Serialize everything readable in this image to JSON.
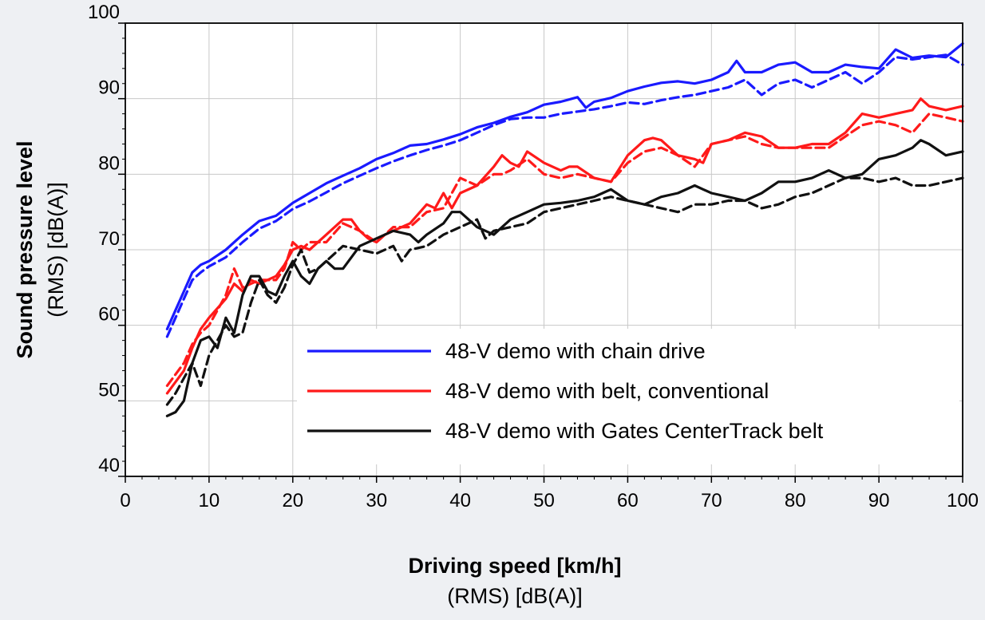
{
  "chart_data": {
    "type": "line",
    "xlabel": "Driving speed [km/h]",
    "xlabel_sub": "(RMS) [dB(A)]",
    "ylabel_line1": "Sound pressure level",
    "ylabel_line2": "(RMS) [dB(A)]",
    "xlim": [
      0,
      100
    ],
    "ylim": [
      40,
      100
    ],
    "xticks": [
      "0",
      "10",
      "20",
      "30",
      "40",
      "50",
      "60",
      "70",
      "80",
      "90",
      "100"
    ],
    "yticks": [
      "40",
      "50",
      "60",
      "70",
      "80",
      "90",
      "100"
    ],
    "grid": true,
    "legend_position": "lower-right",
    "legend": [
      {
        "label": "48-V demo with chain drive",
        "color": "#1a1aff"
      },
      {
        "label": "48-V demo with belt, conventional",
        "color": "#ff1a1a"
      },
      {
        "label": "48-V demo with Gates CenterTrack belt",
        "color": "#111111"
      }
    ],
    "series": [
      {
        "name": "48-V demo with chain drive",
        "style": "solid",
        "color": "#1a1aff",
        "x": [
          5,
          6,
          7,
          8,
          9,
          10,
          12,
          14,
          16,
          18,
          20,
          22,
          24,
          26,
          28,
          30,
          32,
          34,
          36,
          38,
          40,
          42,
          44,
          46,
          48,
          50,
          52,
          54,
          55,
          56,
          58,
          60,
          62,
          64,
          66,
          68,
          70,
          72,
          73,
          74,
          76,
          78,
          80,
          82,
          84,
          86,
          88,
          90,
          92,
          94,
          96,
          98,
          100
        ],
        "y": [
          59.5,
          62,
          64.5,
          67,
          68,
          68.5,
          70,
          72,
          73.8,
          74.5,
          76.2,
          77.5,
          78.8,
          79.8,
          80.8,
          82,
          82.8,
          83.8,
          84,
          84.6,
          85.3,
          86.2,
          86.8,
          87.6,
          88.2,
          89.2,
          89.6,
          90.2,
          88.8,
          89.6,
          90.1,
          91,
          91.6,
          92.1,
          92.3,
          92,
          92.5,
          93.5,
          95,
          93.5,
          93.5,
          94.5,
          94.8,
          93.5,
          93.5,
          94.5,
          94.2,
          94,
          96.5,
          95.4,
          95.7,
          95.5,
          97.3
        ]
      },
      {
        "name": "48-V demo with chain drive (dashed)",
        "style": "dashed",
        "color": "#1a1aff",
        "x": [
          5,
          6,
          7,
          8,
          9,
          10,
          12,
          14,
          16,
          18,
          20,
          22,
          24,
          26,
          28,
          30,
          32,
          34,
          36,
          38,
          40,
          42,
          44,
          46,
          48,
          50,
          52,
          54,
          56,
          58,
          60,
          62,
          64,
          66,
          68,
          70,
          72,
          74,
          76,
          78,
          80,
          82,
          84,
          86,
          88,
          90,
          92,
          94,
          96,
          98,
          100
        ],
        "y": [
          58.5,
          61,
          63.5,
          66,
          67,
          67.8,
          69,
          71,
          72.8,
          73.8,
          75.4,
          76.4,
          77.6,
          78.8,
          79.8,
          80.8,
          81.7,
          82.5,
          83.2,
          83.8,
          84.5,
          85.5,
          86.5,
          87.3,
          87.5,
          87.5,
          88,
          88.3,
          88.6,
          89,
          89.5,
          89.3,
          89.8,
          90.2,
          90.5,
          91,
          91.5,
          92.5,
          90.5,
          92,
          92.5,
          91.5,
          92.5,
          93.5,
          92,
          93.5,
          95.5,
          95.2,
          95.5,
          95.8,
          94.5
        ]
      },
      {
        "name": "48-V demo with belt, conventional",
        "style": "solid",
        "color": "#ff1a1a",
        "x": [
          5,
          6,
          7,
          8,
          9,
          10,
          12,
          13,
          14,
          15,
          16,
          18,
          19,
          20,
          21,
          22,
          24,
          26,
          27,
          28,
          29,
          30,
          31,
          32,
          34,
          36,
          37,
          38,
          39,
          40,
          42,
          44,
          45,
          46,
          47,
          48,
          50,
          52,
          53,
          54,
          56,
          58,
          60,
          62,
          63,
          64,
          66,
          68,
          69,
          70,
          72,
          74,
          76,
          78,
          80,
          82,
          84,
          86,
          88,
          90,
          92,
          94,
          95,
          96,
          98,
          100
        ],
        "y": [
          51,
          52.5,
          54,
          57,
          59.5,
          61,
          63.5,
          65.5,
          64.5,
          66,
          65.5,
          66.5,
          68,
          70,
          70.5,
          70,
          72,
          74,
          74,
          72.5,
          71.5,
          71,
          72,
          72.5,
          73.5,
          76,
          75.5,
          77.5,
          75.5,
          77.5,
          78.5,
          81,
          82.5,
          81.5,
          81,
          83,
          81.5,
          80.5,
          81,
          81,
          79.5,
          79,
          82.5,
          84.5,
          84.8,
          84.5,
          82.5,
          82,
          81.5,
          84,
          84.5,
          85.5,
          85,
          83.5,
          83.5,
          84,
          84,
          85.5,
          88,
          87.5,
          88,
          88.5,
          90,
          89,
          88.5,
          89
        ]
      },
      {
        "name": "48-V demo with belt, conventional (dashed)",
        "style": "dashed",
        "color": "#ff1a1a",
        "x": [
          5,
          6,
          7,
          8,
          9,
          10,
          12,
          13,
          14,
          15,
          16,
          18,
          19,
          20,
          21,
          22,
          24,
          26,
          28,
          30,
          32,
          34,
          36,
          38,
          40,
          42,
          44,
          45,
          46,
          48,
          50,
          52,
          54,
          56,
          58,
          60,
          62,
          64,
          66,
          68,
          70,
          72,
          74,
          76,
          78,
          80,
          82,
          84,
          86,
          88,
          90,
          92,
          94,
          96,
          98,
          100
        ],
        "y": [
          52,
          53.5,
          55,
          57.5,
          59,
          60,
          64,
          67.5,
          65,
          65.5,
          66,
          66,
          67.5,
          71,
          70,
          71,
          71,
          73.5,
          72.5,
          71,
          73,
          73,
          75,
          75.5,
          79.5,
          78.5,
          80,
          80,
          80.5,
          82,
          80,
          79.5,
          80,
          79.5,
          79,
          81.5,
          83,
          83.5,
          82.5,
          81,
          84,
          84.5,
          85,
          84,
          83.5,
          83.5,
          83.5,
          83.5,
          85,
          86.5,
          87,
          86.5,
          85.5,
          88,
          87.5,
          87
        ]
      },
      {
        "name": "48-V demo with Gates CenterTrack belt",
        "style": "solid",
        "color": "#111111",
        "x": [
          5,
          6,
          7,
          8,
          9,
          10,
          11,
          12,
          13,
          14,
          15,
          16,
          17,
          18,
          19,
          20,
          21,
          22,
          23,
          24,
          25,
          26,
          28,
          30,
          32,
          34,
          35,
          36,
          38,
          39,
          40,
          42,
          43,
          44,
          45,
          46,
          48,
          50,
          52,
          54,
          56,
          57,
          58,
          60,
          62,
          64,
          66,
          68,
          69,
          70,
          72,
          74,
          76,
          78,
          80,
          82,
          84,
          86,
          88,
          90,
          92,
          94,
          95,
          96,
          98,
          100
        ],
        "y": [
          48,
          48.5,
          50,
          55,
          58,
          58.5,
          57,
          61,
          59,
          64,
          66.5,
          66.5,
          64.5,
          64,
          66.5,
          68.5,
          66.5,
          65.5,
          67.5,
          68.5,
          67.5,
          67.5,
          70.5,
          71.5,
          72.5,
          72,
          71,
          72,
          73.5,
          75,
          75,
          73,
          72.5,
          72,
          73,
          74,
          75,
          76,
          76.2,
          76.5,
          77,
          77.5,
          78,
          76.5,
          76,
          77,
          77.5,
          78.5,
          78,
          77.5,
          77,
          76.5,
          77.5,
          79,
          79,
          79.5,
          80.5,
          79.5,
          80,
          82,
          82.5,
          83.5,
          84.5,
          84,
          82.5,
          83
        ]
      },
      {
        "name": "48-V demo with Gates CenterTrack belt (dashed)",
        "style": "dashed",
        "color": "#111111",
        "x": [
          5,
          6,
          7,
          8,
          9,
          10,
          11,
          12,
          13,
          14,
          15,
          16,
          17,
          18,
          19,
          20,
          21,
          22,
          23,
          24,
          26,
          28,
          30,
          32,
          33,
          34,
          36,
          38,
          40,
          42,
          43,
          44,
          46,
          48,
          50,
          52,
          54,
          56,
          58,
          60,
          62,
          64,
          66,
          68,
          70,
          72,
          74,
          76,
          78,
          80,
          82,
          84,
          86,
          88,
          90,
          92,
          94,
          96,
          98,
          100
        ],
        "y": [
          49.5,
          51,
          53,
          55,
          52,
          56,
          58,
          60,
          58.5,
          59,
          63,
          66,
          64,
          63,
          65,
          68,
          70,
          67,
          67.5,
          68.5,
          70.5,
          70,
          69.5,
          70.5,
          68.5,
          70,
          70.5,
          72,
          73,
          74,
          71.5,
          72.5,
          73,
          73.5,
          75,
          75.5,
          76,
          76.5,
          77,
          76.5,
          76,
          75.5,
          75,
          76,
          76,
          76.5,
          76.5,
          75.5,
          76,
          77,
          77.5,
          78.5,
          79.5,
          79.5,
          79,
          79.5,
          78.5,
          78.5,
          79,
          79.5
        ]
      }
    ]
  }
}
